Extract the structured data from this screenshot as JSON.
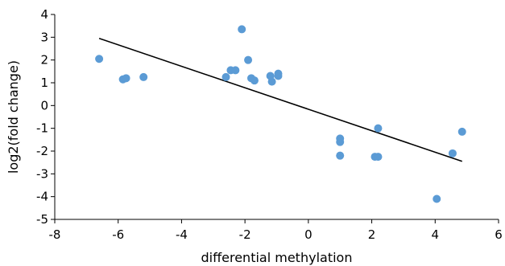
{
  "chart_data": {
    "type": "scatter",
    "title": "",
    "xlabel": "differential methylation",
    "ylabel": "log2(fold change)",
    "xlim": [
      -8,
      6
    ],
    "ylim": [
      -5,
      4
    ],
    "xticks": [
      "-8",
      "-6",
      "-4",
      "-2",
      "0",
      "2",
      "4",
      "6"
    ],
    "yticks": [
      "4",
      "3",
      "2",
      "1",
      "0",
      "-1",
      "-2",
      "-3",
      "-4",
      "-5"
    ],
    "grid": false,
    "legend": "none",
    "colors": {
      "points": "#5b9bd5",
      "trendline": "#000000",
      "axis": "#000000"
    },
    "points": [
      {
        "x": -6.6,
        "y": 2.05
      },
      {
        "x": -5.85,
        "y": 1.15
      },
      {
        "x": -5.75,
        "y": 1.2
      },
      {
        "x": -5.2,
        "y": 1.25
      },
      {
        "x": -2.6,
        "y": 1.25
      },
      {
        "x": -2.45,
        "y": 1.55
      },
      {
        "x": -2.3,
        "y": 1.55
      },
      {
        "x": -2.1,
        "y": 3.35
      },
      {
        "x": -1.9,
        "y": 2.0
      },
      {
        "x": -1.8,
        "y": 1.2
      },
      {
        "x": -1.7,
        "y": 1.1
      },
      {
        "x": -1.2,
        "y": 1.3
      },
      {
        "x": -1.15,
        "y": 1.05
      },
      {
        "x": -0.95,
        "y": 1.3
      },
      {
        "x": -0.95,
        "y": 1.4
      },
      {
        "x": 1.0,
        "y": -1.45
      },
      {
        "x": 1.0,
        "y": -1.6
      },
      {
        "x": 1.0,
        "y": -2.2
      },
      {
        "x": 2.1,
        "y": -2.25
      },
      {
        "x": 2.2,
        "y": -2.25
      },
      {
        "x": 2.2,
        "y": -1.0
      },
      {
        "x": 4.05,
        "y": -4.1
      },
      {
        "x": 4.55,
        "y": -2.1
      },
      {
        "x": 4.85,
        "y": -1.15
      }
    ],
    "trendline": {
      "x": [
        -6.6,
        4.85
      ],
      "y": [
        2.95,
        -2.45
      ]
    }
  }
}
